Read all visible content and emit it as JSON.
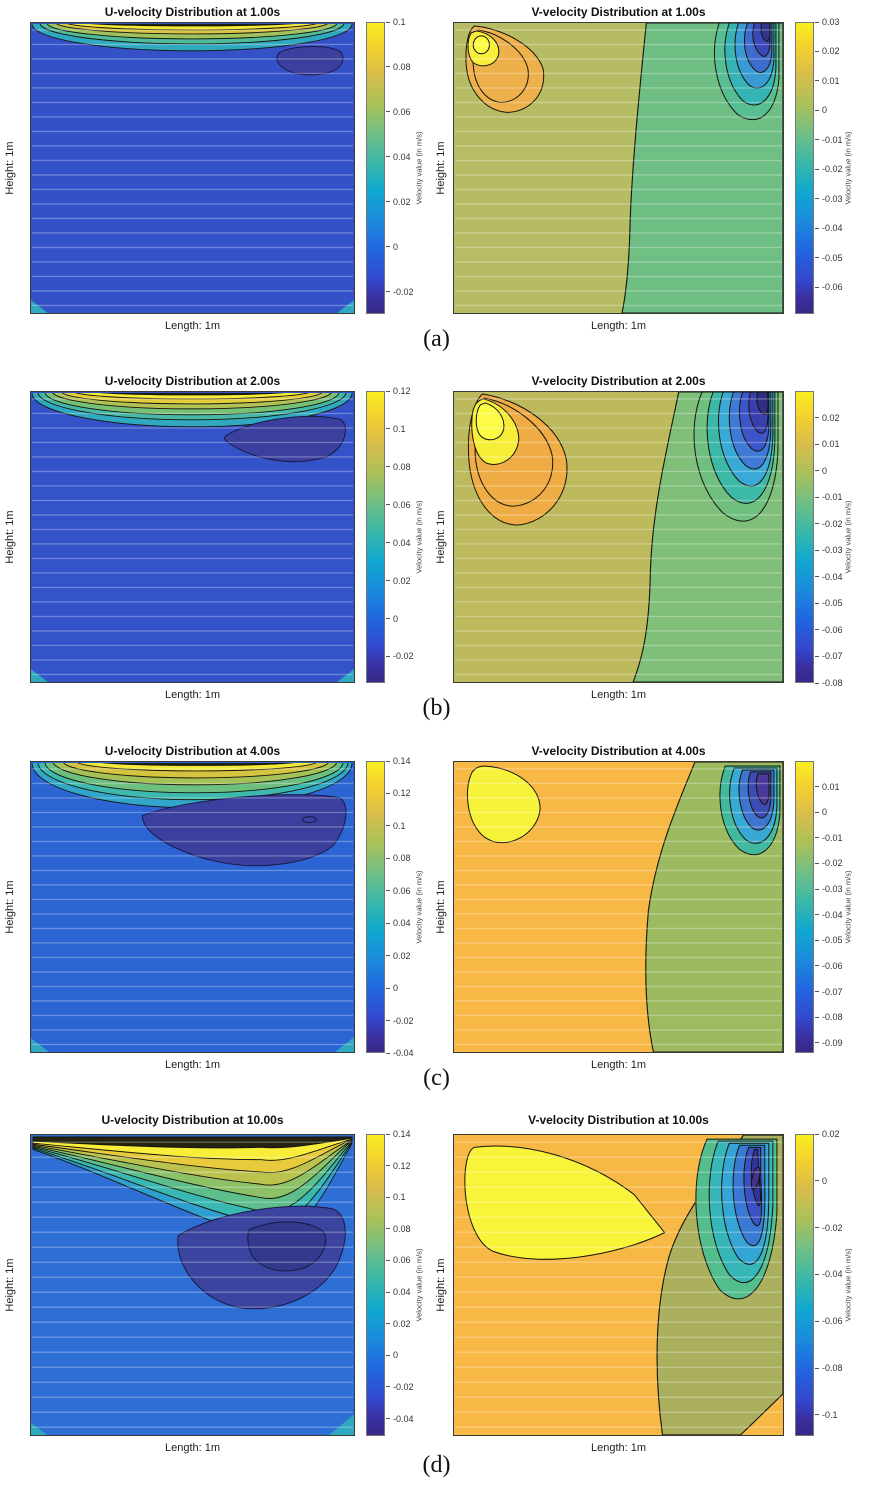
{
  "figure": {
    "background": "#ffffff",
    "captions": [
      "(a)",
      "(b)",
      "(c)",
      "(d)"
    ]
  },
  "chart_data": {
    "type": "heatmap",
    "subtype": "filled-contour",
    "colormap": "parula",
    "colormap_top_hex": "#f9ee21",
    "colormap_bottom_hex": "#352a87",
    "grid": "faint white horizontal mesh lines over each plot",
    "legend_position": "vertical colorbar right of each plot",
    "panels": [
      {
        "id": "u_1s",
        "time_s": 1.0,
        "title": "U-velocity Distribution at 1.00s",
        "xlabel": "Length: 1m",
        "ylabel": "Height: 1m",
        "cbar_label": "Velocity value (in m/s)",
        "vmax": 0.1,
        "vmin": -0.03,
        "ticks": [
          "0.1",
          "0.08",
          "0.06",
          "0.04",
          "0.02",
          "0",
          "-0.02"
        ],
        "description": "Thin lens-shaped band of high U (yellow, ~0.1 m/s) hugging the moving lid at top; small negative pocket (~-0.02) near top right; bulk of cavity near -0.01 (royal blue); teal notches at bottom corners."
      },
      {
        "id": "v_1s",
        "time_s": 1.0,
        "title": "V-velocity Distribution at 1.00s",
        "xlabel": "Length: 1m",
        "ylabel": "Height: 1m",
        "cbar_label": "Velocity value (in m/s)",
        "vmax": 0.03,
        "vmin": -0.069,
        "ticks": [
          "0.03",
          "0.02",
          "0.01",
          "0",
          "-0.01",
          "-0.02",
          "-0.03",
          "-0.04",
          "-0.05",
          "-0.06"
        ],
        "description": "Positive V blob (orange with yellow core ~0.03) at top left; strong negative teardrop (nested teal-blue-indigo, to ~-0.069) at top right; left half near +0.005 (olive), right half near -0.01 (green)."
      },
      {
        "id": "u_2s",
        "time_s": 2.0,
        "title": "U-velocity Distribution at 2.00s",
        "xlabel": "Length: 1m",
        "ylabel": "Height: 1m",
        "cbar_label": "Velocity value (in m/s)",
        "vmax": 0.12,
        "vmin": -0.034,
        "ticks": [
          "0.12",
          "0.1",
          "0.08",
          "0.06",
          "0.04",
          "0.02",
          "0",
          "-0.02"
        ],
        "description": "Lid band thicker (peak ~0.12); negative crescent (~-0.025) grown under the band toward top right; cavity bulk royal blue."
      },
      {
        "id": "v_2s",
        "time_s": 2.0,
        "title": "V-velocity Distribution at 2.00s",
        "xlabel": "Length: 1m",
        "ylabel": "Height: 1m",
        "cbar_label": "Velocity value (in m/s)",
        "vmax": 0.03,
        "vmin": -0.08,
        "ticks": [
          "0.02",
          "0.01",
          "0",
          "-0.01",
          "-0.02",
          "-0.03",
          "-0.04",
          "-0.05",
          "-0.06",
          "-0.07",
          "-0.08"
        ],
        "description": "Upwash blob at top left larger (yellow core ~0.028); downwash teardrop at top right deeper (to ~-0.08); olive left half, green right half split by near-vertical zero contour."
      },
      {
        "id": "u_4s",
        "time_s": 4.0,
        "title": "U-velocity Distribution at 4.00s",
        "xlabel": "Length: 1m",
        "ylabel": "Height: 1m",
        "cbar_label": "Velocity value (in m/s)",
        "vmax": 0.14,
        "vmin": -0.04,
        "ticks": [
          "0.14",
          "0.12",
          "0.1",
          "0.08",
          "0.06",
          "0.04",
          "0.02",
          "0",
          "-0.02",
          "-0.04"
        ],
        "description": "Lid band deeper with many contours (peak ~0.14); wide negative crescent (~-0.03) spanning upper right half with a tiny closed contour inside; field lighter azure blue."
      },
      {
        "id": "v_4s",
        "time_s": 4.0,
        "title": "V-velocity Distribution at 4.00s",
        "xlabel": "Length: 1m",
        "ylabel": "Height: 1m",
        "cbar_label": "Velocity value (in m/s)",
        "vmax": 0.02,
        "vmin": -0.094,
        "ticks": [
          "0.01",
          "0",
          "-0.01",
          "-0.02",
          "-0.03",
          "-0.04",
          "-0.05",
          "-0.06",
          "-0.07",
          "-0.08",
          "-0.09"
        ],
        "description": "Large yellow positive blob (~0.02) at upper left on orange background; S-shaped zero contour; green right side; compact nested negative teardrop (to ~-0.09) at top right."
      },
      {
        "id": "u_10s",
        "time_s": 10.0,
        "title": "U-velocity Distribution at 10.00s",
        "xlabel": "Length: 1m",
        "ylabel": "Height: 1m",
        "cbar_label": "Velocity value (in m/s)",
        "vmax": 0.14,
        "vmin": -0.051,
        "ticks": [
          "0.14",
          "0.12",
          "0.1",
          "0.08",
          "0.06",
          "0.04",
          "0.02",
          "0",
          "-0.02",
          "-0.04"
        ],
        "description": "Lid shear layer swept diagonally, deepest near right of center; big negative recirculation blob (~-0.04) in mid-right with darker inner contour; azure field."
      },
      {
        "id": "v_10s",
        "time_s": 10.0,
        "title": "V-velocity Distribution at 10.00s",
        "xlabel": "Length: 1m",
        "ylabel": "Height: 1m",
        "cbar_label": "Velocity value (in m/s)",
        "vmax": 0.02,
        "vmin": -0.109,
        "ticks": [
          "0.02",
          "0",
          "-0.02",
          "-0.04",
          "-0.06",
          "-0.08",
          "-0.1"
        ],
        "description": "Large yellow wedge (~0.02) pointing right from upper left on orange background; olive-green right region; deep nested negative teardrop (to ~-0.1, indigo core) along upper right wall; orange notch at bottom right corner."
      }
    ]
  }
}
